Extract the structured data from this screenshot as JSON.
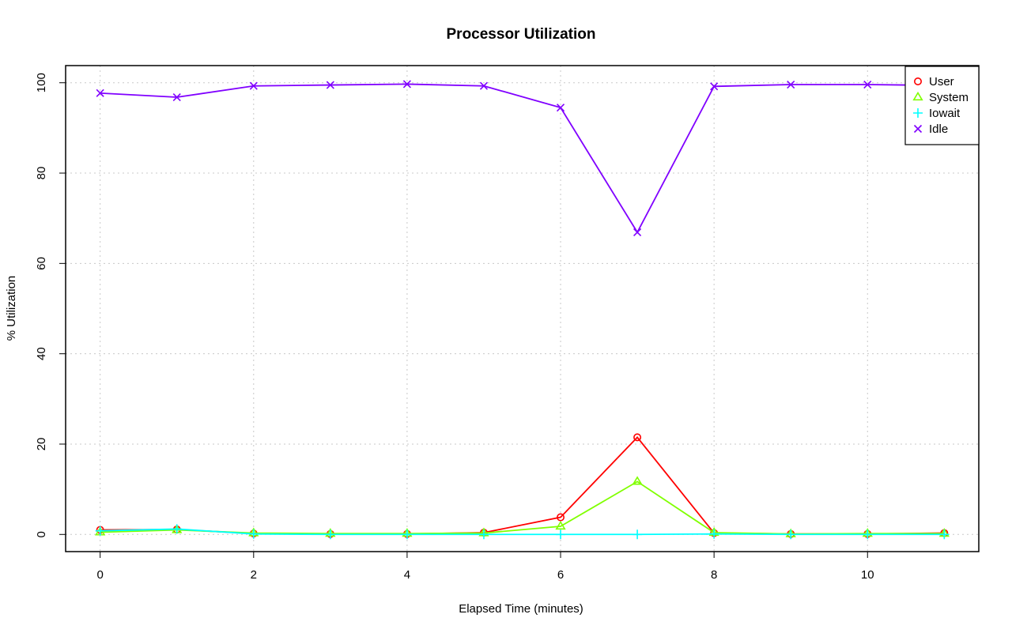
{
  "chart_data": {
    "type": "line",
    "title": "Processor Utilization",
    "xlabel": "Elapsed Time (minutes)",
    "ylabel": "% Utilization",
    "xlim": [
      -0.45,
      11.45
    ],
    "ylim": [
      -3.8,
      103.8
    ],
    "x_ticks": [
      0,
      2,
      4,
      6,
      8,
      10
    ],
    "y_ticks": [
      0,
      20,
      40,
      60,
      80,
      100
    ],
    "grid": true,
    "legend_position": "top-right",
    "x": [
      0,
      1,
      2,
      3,
      4,
      5,
      6,
      7,
      8,
      9,
      10,
      11
    ],
    "series": [
      {
        "name": "User",
        "color": "#ff0000",
        "marker": "circle",
        "values": [
          1.0,
          1.1,
          0.2,
          0.1,
          0.1,
          0.4,
          3.8,
          21.5,
          0.3,
          0.1,
          0.1,
          0.3
        ]
      },
      {
        "name": "System",
        "color": "#80ff00",
        "marker": "triangle",
        "values": [
          0.5,
          1.0,
          0.3,
          0.2,
          0.2,
          0.3,
          1.8,
          11.7,
          0.4,
          0.1,
          0.2,
          0.2
        ]
      },
      {
        "name": "Iowait",
        "color": "#00ffff",
        "marker": "plus",
        "values": [
          0.8,
          1.2,
          0.1,
          0.0,
          0.0,
          0.0,
          0.0,
          0.0,
          0.1,
          0.0,
          0.0,
          0.0
        ]
      },
      {
        "name": "Idle",
        "color": "#8000ff",
        "marker": "x",
        "values": [
          97.7,
          96.8,
          99.3,
          99.5,
          99.7,
          99.3,
          94.5,
          66.9,
          99.2,
          99.6,
          99.6,
          99.4
        ]
      }
    ]
  }
}
